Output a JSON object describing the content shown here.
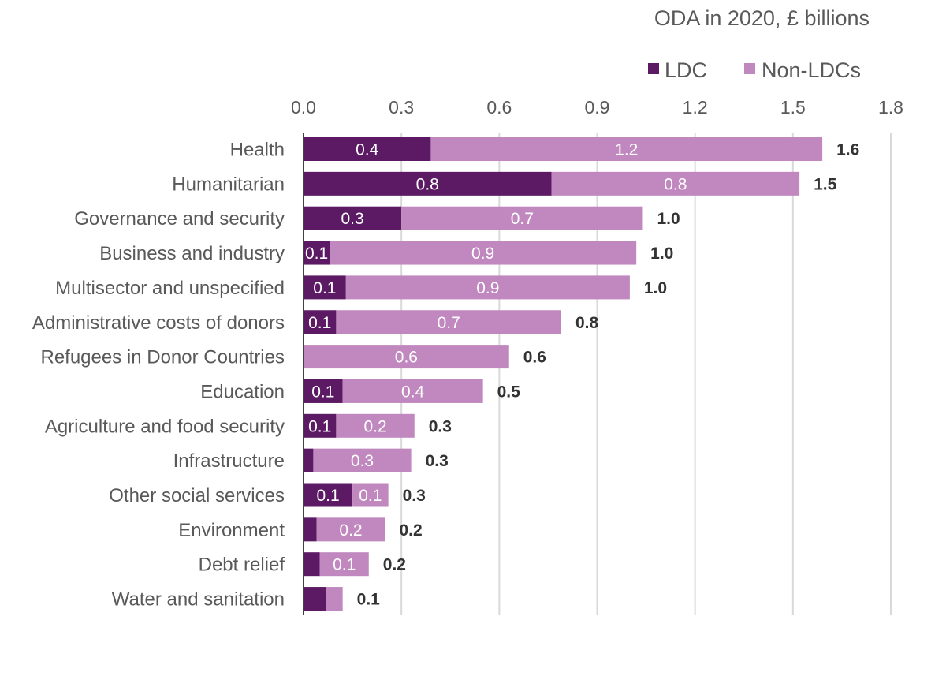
{
  "chart_data": {
    "type": "bar",
    "orientation": "horizontal",
    "stacked": true,
    "title": "ODA in 2020, £ billions",
    "xlim": [
      0,
      1.8
    ],
    "x_ticks": [
      "0.0",
      "0.3",
      "0.6",
      "0.9",
      "1.2",
      "1.5",
      "1.8"
    ],
    "grid": true,
    "legend_position": "top-right",
    "categories": [
      "Health",
      "Humanitarian",
      "Governance and security",
      "Business and industry",
      "Multisector and unspecified",
      "Administrative costs of donors",
      "Refugees in Donor Countries",
      "Education",
      "Agriculture and food security",
      "Infrastructure",
      "Other social services",
      "Environment",
      "Debt relief",
      "Water and sanitation"
    ],
    "series": [
      {
        "name": "LDC",
        "color": "#5b1a63",
        "values": [
          0.39,
          0.76,
          0.3,
          0.08,
          0.13,
          0.1,
          0.0,
          0.12,
          0.1,
          0.03,
          0.15,
          0.04,
          0.05,
          0.07
        ],
        "labels": [
          "0.4",
          "0.8",
          "0.3",
          "0.1",
          "0.1",
          "0.1",
          "",
          "0.1",
          "0.1",
          "",
          "0.1",
          "",
          "",
          ""
        ]
      },
      {
        "name": "Non-LDCs",
        "color": "#c088bf",
        "values": [
          1.2,
          0.76,
          0.74,
          0.94,
          0.87,
          0.69,
          0.63,
          0.43,
          0.24,
          0.3,
          0.11,
          0.21,
          0.15,
          0.05
        ],
        "labels": [
          "1.2",
          "0.8",
          "0.7",
          "0.9",
          "0.9",
          "0.7",
          "0.6",
          "0.4",
          "0.2",
          "0.3",
          "0.1",
          "0.2",
          "0.1",
          ""
        ]
      }
    ],
    "totals": [
      "1.6",
      "1.5",
      "1.0",
      "1.0",
      "1.0",
      "0.8",
      "0.6",
      "0.5",
      "0.3",
      "0.3",
      "0.3",
      "0.2",
      "0.2",
      "0.1"
    ]
  }
}
